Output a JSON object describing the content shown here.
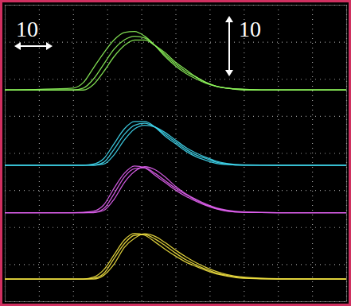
{
  "chart_data": {
    "type": "line",
    "annotations": [
      "10",
      "10"
    ],
    "x": [
      0,
      20,
      23,
      26,
      29,
      32,
      35,
      38,
      41,
      44,
      47,
      50,
      53,
      56,
      59,
      62,
      65,
      70,
      80,
      100
    ],
    "xlim": [
      0,
      100
    ],
    "ylim": [
      0,
      80
    ],
    "xticks": [
      0,
      10,
      20,
      30,
      40,
      50,
      60,
      70,
      80,
      90,
      100
    ],
    "yticks": [
      0,
      10,
      20,
      30,
      40,
      50,
      60,
      70,
      80
    ],
    "grid": true,
    "tick_labels": false,
    "series": [
      {
        "color": "#8cf25a",
        "values": [
          57,
          57,
          57.5,
          60,
          64,
          68,
          70.5,
          71.5,
          71,
          69,
          66.5,
          64,
          62,
          60.5,
          59,
          58,
          57.5,
          57.2,
          57,
          57
        ]
      },
      {
        "color": "#8cf25a",
        "values": [
          57,
          57,
          57,
          58.5,
          62,
          66,
          69,
          70.5,
          70.5,
          69,
          67,
          64.5,
          62.5,
          60.5,
          59,
          58,
          57.5,
          57,
          57,
          57
        ]
      },
      {
        "color": "#8cf25a",
        "values": [
          57,
          57.5,
          59,
          63,
          67,
          70.5,
          72.5,
          72.8,
          71.5,
          69,
          66,
          63.5,
          61.5,
          60,
          58.8,
          58,
          57.5,
          57.2,
          57,
          57
        ]
      },
      {
        "color": "#40d8f0",
        "values": [
          36.7,
          36.7,
          36.7,
          36.7,
          37.5,
          41,
          45,
          47.5,
          48,
          47,
          45,
          43,
          41,
          39.5,
          38.5,
          37.5,
          37,
          36.7,
          36.7,
          36.7
        ]
      },
      {
        "color": "#40d8f0",
        "values": [
          36.7,
          36.7,
          36.7,
          36.7,
          37,
          39.5,
          43.5,
          46.5,
          47.5,
          47,
          45.5,
          43.5,
          41.5,
          40,
          38.8,
          37.8,
          37.2,
          36.8,
          36.7,
          36.7
        ]
      },
      {
        "color": "#40d8f0",
        "values": [
          36.7,
          36.7,
          36.7,
          37,
          38.5,
          42.5,
          46.5,
          48.5,
          48.5,
          47,
          44.5,
          42.5,
          40.5,
          39,
          38,
          37.2,
          36.9,
          36.7,
          36.7,
          36.7
        ]
      },
      {
        "color": "#e060f0",
        "values": [
          23.9,
          23.9,
          23.9,
          24,
          25,
          29,
          33.5,
          35.8,
          36,
          34.5,
          32.5,
          30.5,
          28.8,
          27.3,
          26,
          25,
          24.4,
          24,
          23.9,
          23.9
        ]
      },
      {
        "color": "#e060f0",
        "values": [
          23.9,
          23.9,
          23.9,
          23.9,
          24.5,
          27.5,
          32,
          35,
          36.3,
          35.5,
          33.5,
          31,
          29,
          27.5,
          26.2,
          25.2,
          24.6,
          24.1,
          23.9,
          23.9
        ]
      },
      {
        "color": "#e060f0",
        "values": [
          23.9,
          23.9,
          24,
          24.3,
          26,
          30.5,
          34.5,
          36.5,
          36,
          34,
          32,
          30,
          28.3,
          27,
          25.8,
          24.9,
          24.3,
          24,
          23.9,
          23.9
        ]
      },
      {
        "color": "#f0e040",
        "values": [
          6,
          6,
          6,
          6.2,
          7.5,
          11.5,
          15.5,
          17.8,
          18,
          16.8,
          15,
          13,
          11.2,
          9.8,
          8.6,
          7.6,
          7,
          6.3,
          6,
          6
        ]
      },
      {
        "color": "#f0e040",
        "values": [
          6,
          6,
          6,
          6,
          7,
          10,
          14.5,
          17,
          18.2,
          17.5,
          15.8,
          13.8,
          12,
          10.4,
          9.1,
          8,
          7.2,
          6.5,
          6.1,
          6
        ]
      },
      {
        "color": "#f0e040",
        "values": [
          6,
          6,
          6,
          6.5,
          8.5,
          12.5,
          16.5,
          18.3,
          17.8,
          16,
          14,
          12.2,
          10.6,
          9.4,
          8.3,
          7.4,
          6.8,
          6.2,
          6,
          6
        ]
      }
    ]
  }
}
